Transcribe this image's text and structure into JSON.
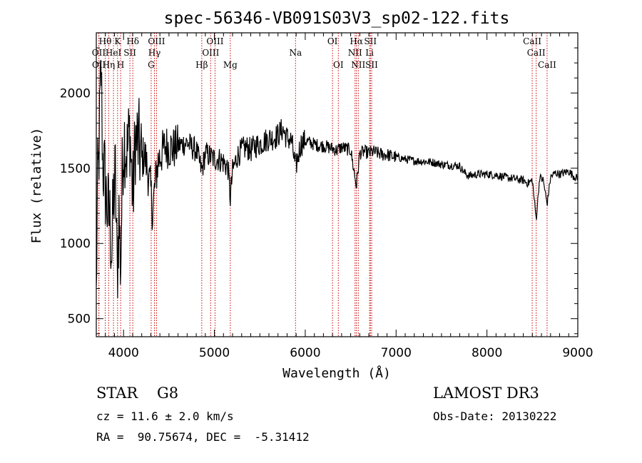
{
  "chart_data": {
    "type": "line",
    "title": "spec-56346-VB091S03V3_sp02-122.fits",
    "xlabel": "Wavelength (Å)",
    "ylabel": "Flux (relative)",
    "xlim": [
      3700,
      9000
    ],
    "ylim": [
      380,
      2400
    ],
    "x_ticks": [
      4000,
      5000,
      6000,
      7000,
      8000,
      9000
    ],
    "y_ticks": [
      500,
      1000,
      1500,
      2000
    ],
    "grid": false,
    "line_color": "#000000",
    "marker_color": "#cc0000",
    "spectrum_anchors": [
      [
        3700,
        620
      ],
      [
        3712,
        1350
      ],
      [
        3725,
        1500
      ],
      [
        3740,
        1900
      ],
      [
        3755,
        2150
      ],
      [
        3770,
        1550
      ],
      [
        3790,
        1450
      ],
      [
        3810,
        1300
      ],
      [
        3830,
        1200
      ],
      [
        3850,
        1150
      ],
      [
        3870,
        950
      ],
      [
        3890,
        1300
      ],
      [
        3910,
        1450
      ],
      [
        3930,
        780
      ],
      [
        3950,
        1200
      ],
      [
        3968,
        820
      ],
      [
        3990,
        1600
      ],
      [
        4010,
        1700
      ],
      [
        4040,
        1600
      ],
      [
        4070,
        1750
      ],
      [
        4102,
        1280
      ],
      [
        4130,
        1700
      ],
      [
        4170,
        1650
      ],
      [
        4200,
        1550
      ],
      [
        4230,
        1600
      ],
      [
        4260,
        1500
      ],
      [
        4300,
        1350
      ],
      [
        4320,
        1200
      ],
      [
        4340,
        1350
      ],
      [
        4380,
        1550
      ],
      [
        4420,
        1600
      ],
      [
        4460,
        1650
      ],
      [
        4500,
        1640
      ],
      [
        4550,
        1630
      ],
      [
        4600,
        1650
      ],
      [
        4650,
        1660
      ],
      [
        4700,
        1670
      ],
      [
        4750,
        1640
      ],
      [
        4800,
        1620
      ],
      [
        4861,
        1480
      ],
      [
        4900,
        1600
      ],
      [
        4950,
        1580
      ],
      [
        5000,
        1560
      ],
      [
        5050,
        1560
      ],
      [
        5100,
        1540
      ],
      [
        5150,
        1500
      ],
      [
        5175,
        1300
      ],
      [
        5200,
        1480
      ],
      [
        5250,
        1580
      ],
      [
        5300,
        1620
      ],
      [
        5350,
        1640
      ],
      [
        5400,
        1620
      ],
      [
        5450,
        1650
      ],
      [
        5500,
        1660
      ],
      [
        5550,
        1680
      ],
      [
        5600,
        1700
      ],
      [
        5650,
        1700
      ],
      [
        5700,
        1720
      ],
      [
        5750,
        1760
      ],
      [
        5800,
        1700
      ],
      [
        5850,
        1680
      ],
      [
        5893,
        1500
      ],
      [
        5950,
        1660
      ],
      [
        6000,
        1680
      ],
      [
        6050,
        1670
      ],
      [
        6100,
        1660
      ],
      [
        6150,
        1650
      ],
      [
        6200,
        1650
      ],
      [
        6250,
        1640
      ],
      [
        6300,
        1630
      ],
      [
        6350,
        1620
      ],
      [
        6400,
        1640
      ],
      [
        6450,
        1630
      ],
      [
        6500,
        1620
      ],
      [
        6563,
        1380
      ],
      [
        6600,
        1600
      ],
      [
        6650,
        1610
      ],
      [
        6700,
        1600
      ],
      [
        6750,
        1610
      ],
      [
        6800,
        1600
      ],
      [
        6850,
        1590
      ],
      [
        6900,
        1590
      ],
      [
        6950,
        1580
      ],
      [
        7000,
        1575
      ],
      [
        7100,
        1560
      ],
      [
        7200,
        1550
      ],
      [
        7300,
        1545
      ],
      [
        7400,
        1540
      ],
      [
        7500,
        1525
      ],
      [
        7600,
        1520
      ],
      [
        7700,
        1515
      ],
      [
        7750,
        1470
      ],
      [
        7800,
        1450
      ],
      [
        7900,
        1460
      ],
      [
        8000,
        1460
      ],
      [
        8100,
        1455
      ],
      [
        8200,
        1440
      ],
      [
        8300,
        1430
      ],
      [
        8400,
        1420
      ],
      [
        8450,
        1400
      ],
      [
        8500,
        1420
      ],
      [
        8542,
        1160
      ],
      [
        8580,
        1440
      ],
      [
        8620,
        1420
      ],
      [
        8662,
        1260
      ],
      [
        8700,
        1440
      ],
      [
        8750,
        1470
      ],
      [
        8800,
        1460
      ],
      [
        8850,
        1470
      ],
      [
        8900,
        1480
      ],
      [
        8950,
        1450
      ],
      [
        9000,
        1430
      ]
    ],
    "line_markers": [
      {
        "label": "Hθ",
        "wavelength": 3798,
        "row": 0
      },
      {
        "label": "OII",
        "wavelength": 3727,
        "row": 1
      },
      {
        "label": "OII",
        "wavelength": 3729,
        "row": 2
      },
      {
        "label": "Hη",
        "wavelength": 3836,
        "row": 2
      },
      {
        "label": "HeI",
        "wavelength": 3889,
        "row": 1
      },
      {
        "label": "K",
        "wavelength": 3934,
        "row": 0
      },
      {
        "label": "SII",
        "wavelength": 4070,
        "row": 1
      },
      {
        "label": "H",
        "wavelength": 3968,
        "row": 2
      },
      {
        "label": "Hδ",
        "wavelength": 4102,
        "row": 0
      },
      {
        "label": "OIII",
        "wavelength": 4363,
        "row": 0
      },
      {
        "label": "Hγ",
        "wavelength": 4340,
        "row": 1
      },
      {
        "label": "G",
        "wavelength": 4304,
        "row": 2
      },
      {
        "label": "Hβ",
        "wavelength": 4861,
        "row": 2
      },
      {
        "label": "OIII",
        "wavelength": 5007,
        "row": 0
      },
      {
        "label": "OIII",
        "wavelength": 4959,
        "row": 1
      },
      {
        "label": "Mg",
        "wavelength": 5175,
        "row": 2
      },
      {
        "label": "Na",
        "wavelength": 5893,
        "row": 1
      },
      {
        "label": "OI",
        "wavelength": 6300,
        "row": 0
      },
      {
        "label": "OI",
        "wavelength": 6364,
        "row": 2
      },
      {
        "label": "Hα",
        "wavelength": 6563,
        "row": 0
      },
      {
        "label": "NII",
        "wavelength": 6548,
        "row": 1
      },
      {
        "label": "NII",
        "wavelength": 6584,
        "row": 2
      },
      {
        "label": "SII",
        "wavelength": 6717,
        "row": 0
      },
      {
        "label": "Li",
        "wavelength": 6708,
        "row": 1
      },
      {
        "label": "SII",
        "wavelength": 6731,
        "row": 2
      },
      {
        "label": "CaII",
        "wavelength": 8498,
        "row": 0
      },
      {
        "label": "CaII",
        "wavelength": 8542,
        "row": 1
      },
      {
        "label": "CaII",
        "wavelength": 8662,
        "row": 2
      }
    ]
  },
  "info": {
    "class_label": "STAR",
    "subclass": "G8",
    "cz_text": "cz = 11.6 ± 2.0 km/s",
    "radec_text": "RA =  90.75674, DEC =  -5.31412",
    "survey": "LAMOST DR3",
    "obs_date_text": "Obs-Date: 20130222"
  }
}
